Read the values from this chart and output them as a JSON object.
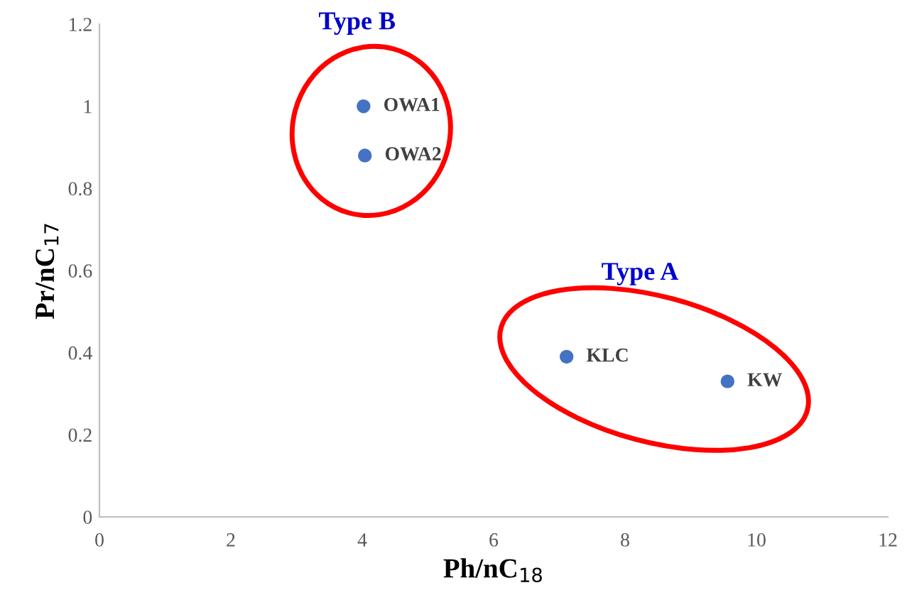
{
  "chart_data": {
    "type": "scatter",
    "xlabel": "Ph/nC$_{18}$",
    "ylabel": "Pr/nC$_{17}$",
    "series": [
      {
        "name": "Type B",
        "color": "#4472c4",
        "x": [
          4.02,
          4.04
        ],
        "values": [
          1.0,
          0.88
        ]
      },
      {
        "name": "Type A",
        "color": "#4472c4",
        "x": [
          7.11,
          9.56
        ],
        "values": [
          0.39,
          0.33
        ]
      }
    ],
    "annotations": [
      {
        "text": "OWA1",
        "x": 4.02,
        "y": 1.0
      },
      {
        "text": "OWA2",
        "x": 4.04,
        "y": 0.88
      },
      {
        "text": "KLC",
        "x": 7.11,
        "y": 0.39
      },
      {
        "text": "KW",
        "x": 9.56,
        "y": 0.33
      }
    ],
    "xlim": [
      0,
      12
    ],
    "xticks": [
      0,
      2,
      4,
      6,
      8,
      10,
      12
    ],
    "ylim": [
      0,
      1.2
    ],
    "yticks": [
      0,
      0.2,
      0.4,
      0.6,
      0.8,
      1,
      1.2
    ],
    "marker": "circle",
    "grid": false,
    "legend": false
  }
}
